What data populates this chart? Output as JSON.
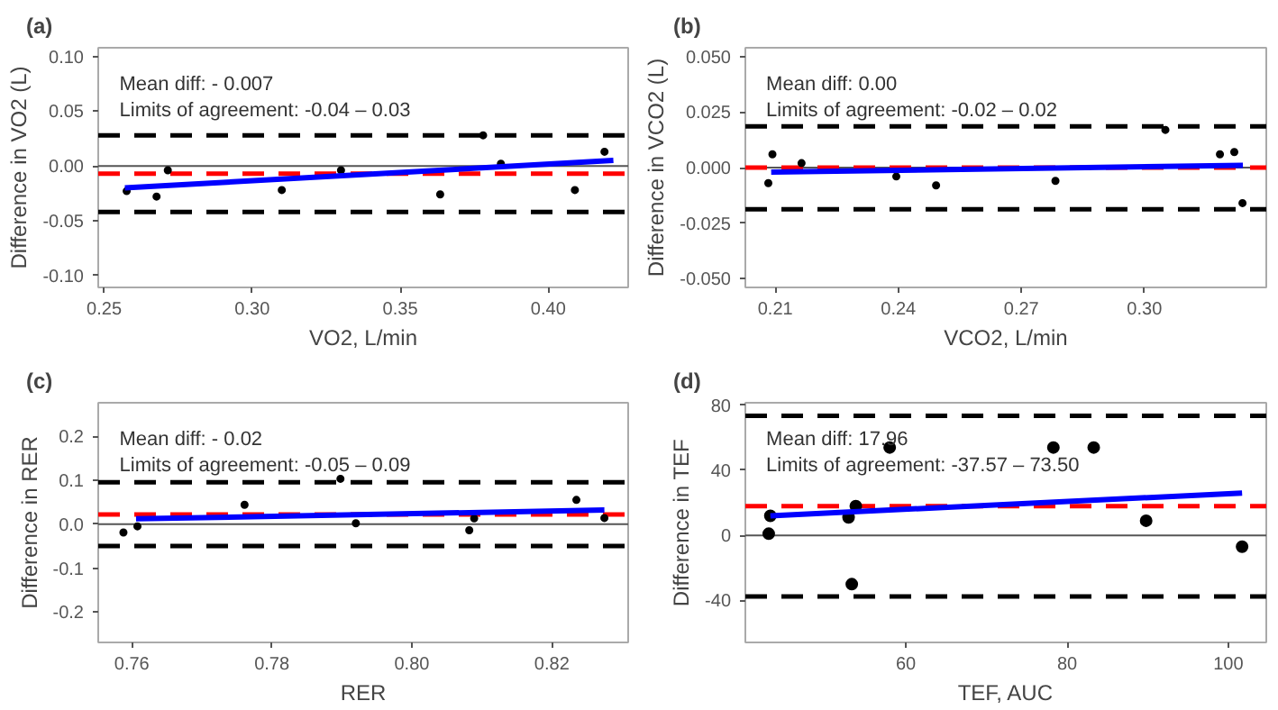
{
  "chart_data": [
    {
      "type": "scatter",
      "title": "(a)",
      "xlabel": "VO2, L/min",
      "ylabel": "Difference in VO2 (L)",
      "grid": false,
      "xlim": [
        0.248,
        0.427
      ],
      "ylim": [
        -0.111,
        0.108
      ],
      "xticks": [
        0.25,
        {
          "value": 0.3,
          "label": "0.30"
        },
        0.35,
        {
          "value": 0.4,
          "label": "0.40"
        }
      ],
      "yticks": [
        {
          "value": -0.1,
          "label": "-0.10"
        },
        -0.05,
        {
          "value": 0,
          "label": "0.00"
        },
        0.05,
        {
          "value": 0.1,
          "label": "0.10"
        }
      ],
      "annotations": [
        "Mean diff: - 0.007",
        "Limits of agreement: -0.04 – 0.03"
      ],
      "ref_lines": [
        {
          "axis": "y",
          "value": 0,
          "color": "#555555",
          "line_style": "solid"
        },
        {
          "axis": "y",
          "value": 0.028,
          "color": "#000000",
          "line_style": "dashed"
        },
        {
          "axis": "y",
          "value": -0.042,
          "color": "#000000",
          "line_style": "dashed"
        },
        {
          "axis": "y",
          "value": -0.007,
          "color": "#ff0000",
          "line_style": "dashed"
        }
      ],
      "series": [
        {
          "marker": "circle",
          "color": "#000000",
          "x": [
            0.2576,
            0.2677,
            0.2715,
            0.31,
            0.33,
            0.3635,
            0.378,
            0.384,
            0.409,
            0.419
          ],
          "values": [
            -0.023,
            -0.028,
            -0.004,
            -0.022,
            -0.004,
            -0.026,
            0.028,
            0.002,
            -0.022,
            0.013
          ]
        },
        {
          "type": "line",
          "color": "#0000ff",
          "x": [
            0.257,
            0.422
          ],
          "values": [
            -0.02,
            0.005
          ]
        }
      ]
    },
    {
      "type": "scatter",
      "title": "(b)",
      "xlabel": "VCO2, L/min",
      "ylabel": "Difference in VCO2 (L)",
      "grid": false,
      "xlim": [
        0.2027,
        0.3297
      ],
      "ylim": [
        -0.054,
        0.054
      ],
      "xticks": [
        0.21,
        0.24,
        0.27,
        {
          "value": 0.3,
          "label": "0.30"
        }
      ],
      "yticks": [
        {
          "value": -0.05,
          "label": "-0.050"
        },
        -0.025,
        {
          "value": 0,
          "label": "0.000"
        },
        0.025,
        {
          "value": 0.05,
          "label": "0.050"
        }
      ],
      "annotations": [
        "Mean diff: 0.00",
        "Limits of agreement: -0.02 – 0.02"
      ],
      "ref_lines": [
        {
          "axis": "y",
          "value": 0,
          "color": "#555555",
          "line_style": "solid"
        },
        {
          "axis": "y",
          "value": 0.0186,
          "color": "#000000",
          "line_style": "dashed"
        },
        {
          "axis": "y",
          "value": -0.0188,
          "color": "#000000",
          "line_style": "dashed"
        },
        {
          "axis": "y",
          "value": 0,
          "color": "#ff0000",
          "line_style": "dashed"
        }
      ],
      "series": [
        {
          "marker": "circle",
          "color": "#000000",
          "x": [
            0.2083,
            0.2093,
            0.2164,
            0.2395,
            0.2492,
            0.2783,
            0.3051,
            0.3184,
            0.3219,
            0.3239
          ],
          "values": [
            -0.007,
            0.006,
            0.002,
            -0.004,
            -0.008,
            -0.006,
            0.017,
            0.006,
            0.007,
            -0.016
          ]
        },
        {
          "type": "line",
          "color": "#0000ff",
          "x": [
            0.209,
            0.324
          ],
          "values": [
            -0.002,
            0.001
          ]
        }
      ]
    },
    {
      "type": "scatter",
      "title": "(c)",
      "xlabel": "RER",
      "ylabel": "Difference in RER",
      "grid": false,
      "xlim": [
        0.7552,
        0.8309
      ],
      "ylim": [
        -0.269,
        0.276
      ],
      "xticks": [
        0.76,
        0.78,
        {
          "value": 0.8,
          "label": "0.80"
        },
        0.82
      ],
      "yticks": [
        -0.2,
        -0.1,
        {
          "value": 0,
          "label": "0.0"
        },
        0.1,
        0.2
      ],
      "annotations": [
        "Mean diff: - 0.02",
        "Limits of agreement: -0.05 – 0.09"
      ],
      "ref_lines": [
        {
          "axis": "y",
          "value": 0,
          "color": "#555555",
          "line_style": "solid"
        },
        {
          "axis": "y",
          "value": 0.095,
          "color": "#000000",
          "line_style": "dashed"
        },
        {
          "axis": "y",
          "value": -0.05,
          "color": "#000000",
          "line_style": "dashed"
        },
        {
          "axis": "y",
          "value": 0.022,
          "color": "#ff0000",
          "line_style": "dashed"
        }
      ],
      "series": [
        {
          "marker": "circle",
          "color": "#000000",
          "x": [
            0.7588,
            0.7608,
            0.7761,
            0.7898,
            0.792,
            0.8082,
            0.8089,
            0.8235,
            0.8275
          ],
          "values": [
            -0.019,
            -0.005,
            0.044,
            0.103,
            0.002,
            -0.014,
            0.013,
            0.055,
            0.014
          ]
        },
        {
          "type": "line",
          "color": "#0000ff",
          "x": [
            0.7606,
            0.8275
          ],
          "values": [
            0.012,
            0.032
          ]
        }
      ]
    },
    {
      "type": "scatter",
      "title": "(d)",
      "xlabel": "TEF, AUC",
      "ylabel": "Difference in TEF",
      "grid": false,
      "xlim": [
        40.1,
        104.7
      ],
      "ylim": [
        -65.8,
        81.5
      ],
      "xticks": [
        60,
        80,
        100
      ],
      "yticks": [
        -40,
        0,
        40,
        80
      ],
      "annotations": [
        "Mean diff: 17.96",
        "Limits of agreement: -37.57 – 73.50"
      ],
      "ref_lines": [
        {
          "axis": "y",
          "value": 0,
          "color": "#555555",
          "line_style": "solid"
        },
        {
          "axis": "y",
          "value": 73.5,
          "color": "#000000",
          "line_style": "dashed"
        },
        {
          "axis": "y",
          "value": -37.57,
          "color": "#000000",
          "line_style": "dashed"
        },
        {
          "axis": "y",
          "value": 17.96,
          "color": "#ff0000",
          "line_style": "dashed"
        }
      ],
      "series": [
        {
          "marker": "circle",
          "color": "#000000",
          "x": [
            43.0,
            43.2,
            52.9,
            53.3,
            53.8,
            58.0,
            78.3,
            83.3,
            89.8,
            101.7
          ],
          "values": [
            1,
            12,
            11,
            -30,
            18,
            54,
            54,
            54,
            9,
            -7
          ]
        },
        {
          "type": "line",
          "color": "#0000ff",
          "x": [
            43.2,
            101.7
          ],
          "values": [
            12,
            26
          ]
        }
      ]
    }
  ]
}
